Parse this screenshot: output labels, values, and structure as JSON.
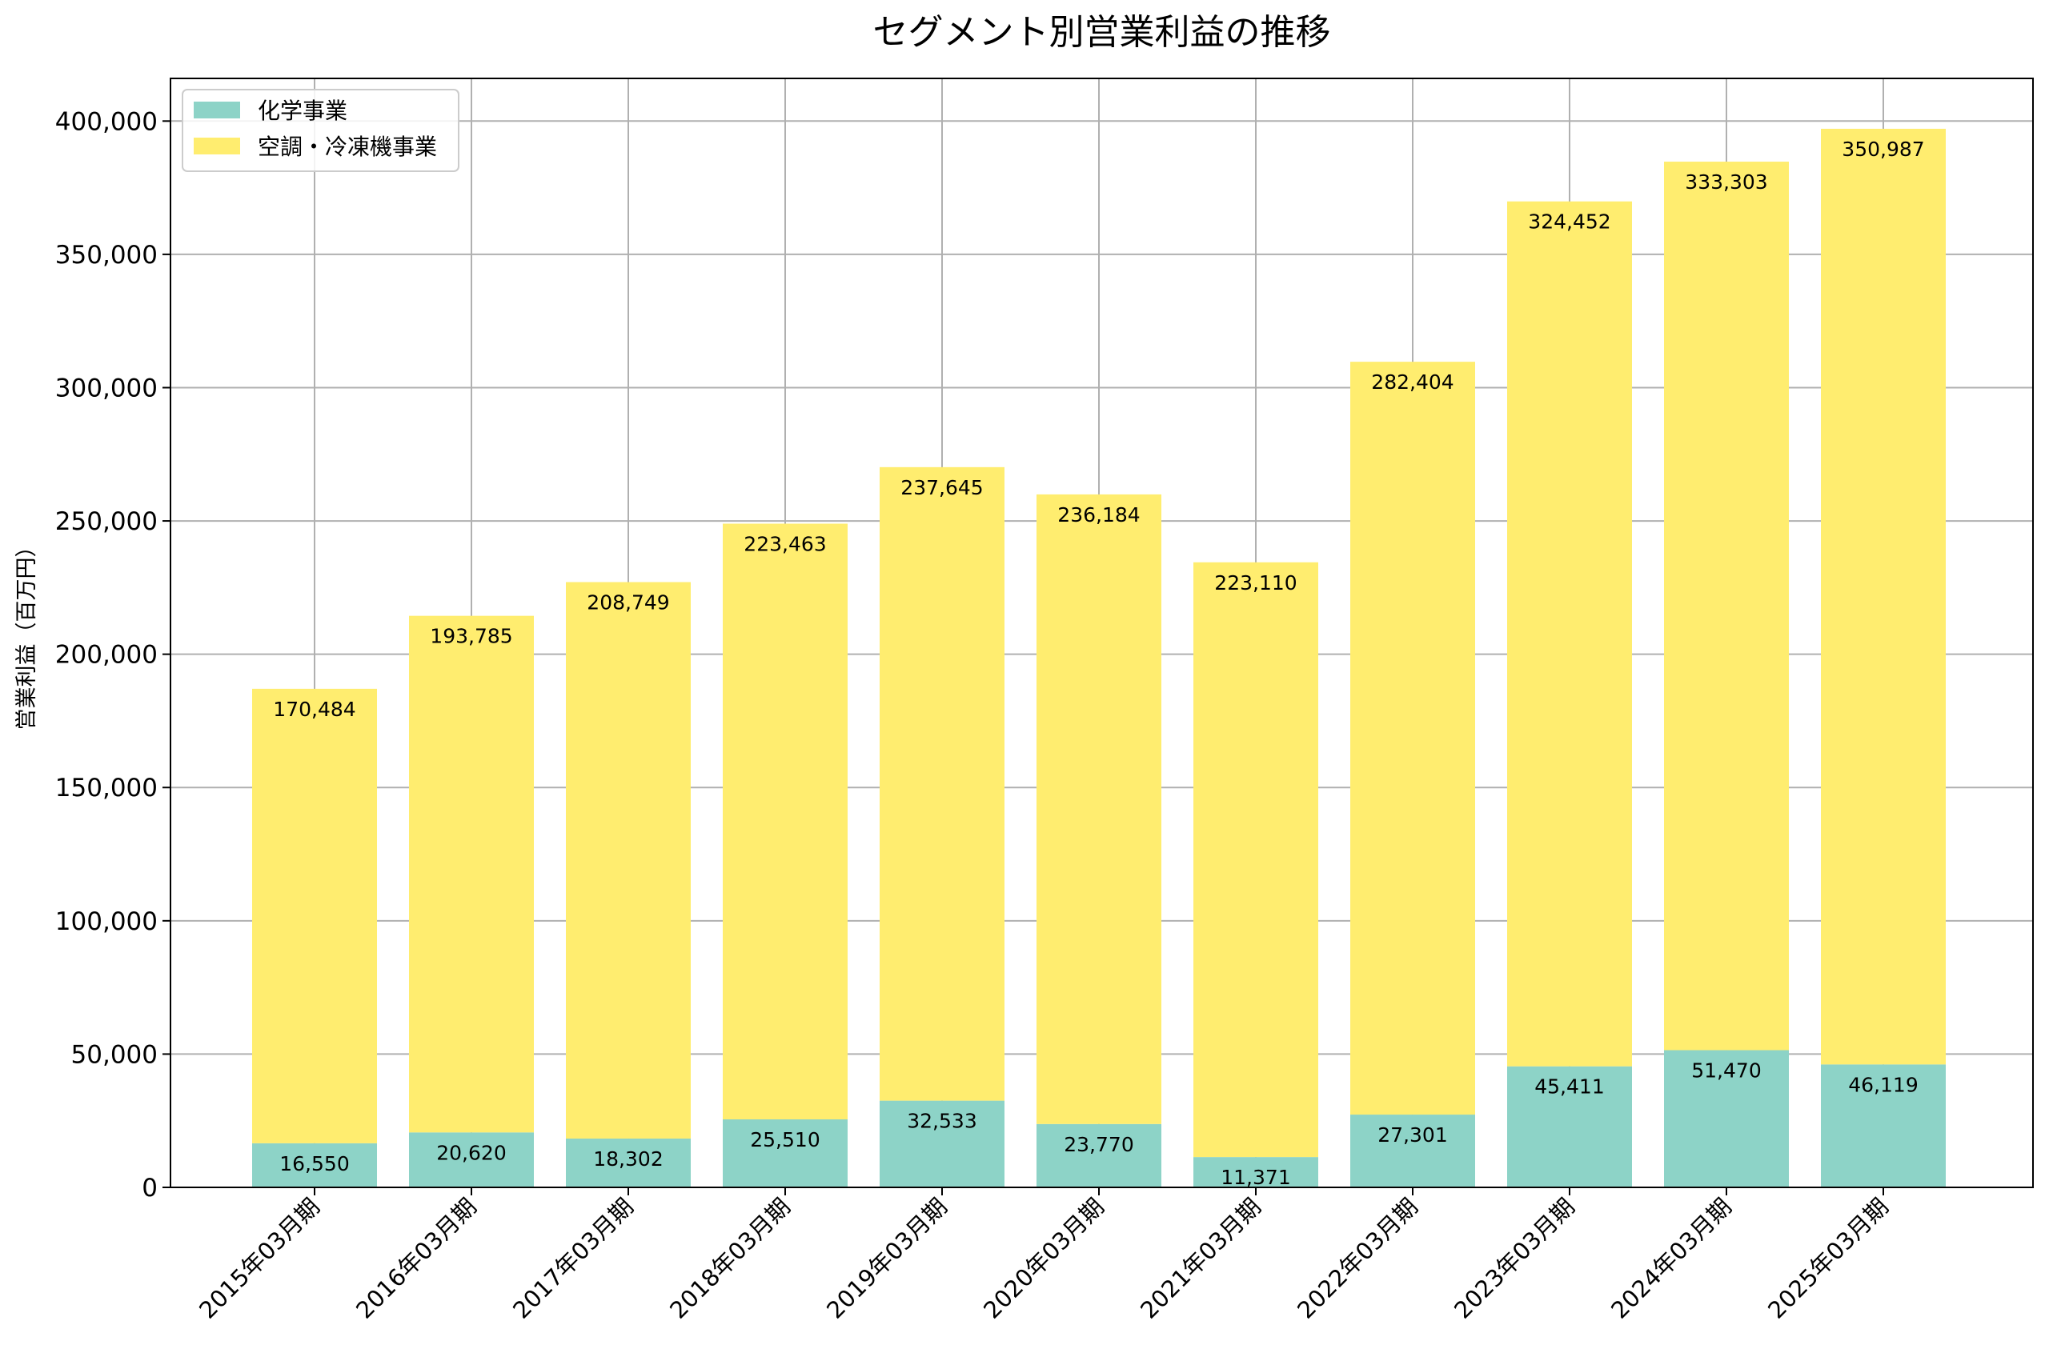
{
  "chart_data": {
    "type": "bar",
    "stacked": true,
    "title": "セグメント別営業利益の推移",
    "xlabel": "",
    "ylabel": "営業利益（百万円）",
    "ylim": [
      0,
      416000
    ],
    "yticks": [
      0,
      50000,
      100000,
      150000,
      200000,
      250000,
      300000,
      350000,
      400000
    ],
    "ytick_labels": [
      "0",
      "50,000",
      "100,000",
      "150,000",
      "200,000",
      "250,000",
      "300,000",
      "350,000",
      "400,000"
    ],
    "grid": true,
    "legend_position": "top-left",
    "categories": [
      "2015年03月期",
      "2016年03月期",
      "2017年03月期",
      "2018年03月期",
      "2019年03月期",
      "2020年03月期",
      "2021年03月期",
      "2022年03月期",
      "2023年03月期",
      "2024年03月期",
      "2025年03月期"
    ],
    "series": [
      {
        "name": "化学事業",
        "color": "#8dd3c7",
        "values": [
          16550,
          20620,
          18302,
          25510,
          32533,
          23770,
          11371,
          27301,
          45411,
          51470,
          46119
        ],
        "labels": [
          "16,550",
          "20,620",
          "18,302",
          "25,510",
          "32,533",
          "23,770",
          "11,371",
          "27,301",
          "45,411",
          "51,470",
          "46,119"
        ]
      },
      {
        "name": "空調・冷凍機事業",
        "color": "#ffed6f",
        "values": [
          170484,
          193785,
          208749,
          223463,
          237645,
          236184,
          223110,
          282404,
          324452,
          333303,
          350987
        ],
        "labels": [
          "170,484",
          "193,785",
          "208,749",
          "223,463",
          "237,645",
          "236,184",
          "223,110",
          "282,404",
          "324,452",
          "333,303",
          "350,987"
        ]
      }
    ]
  }
}
